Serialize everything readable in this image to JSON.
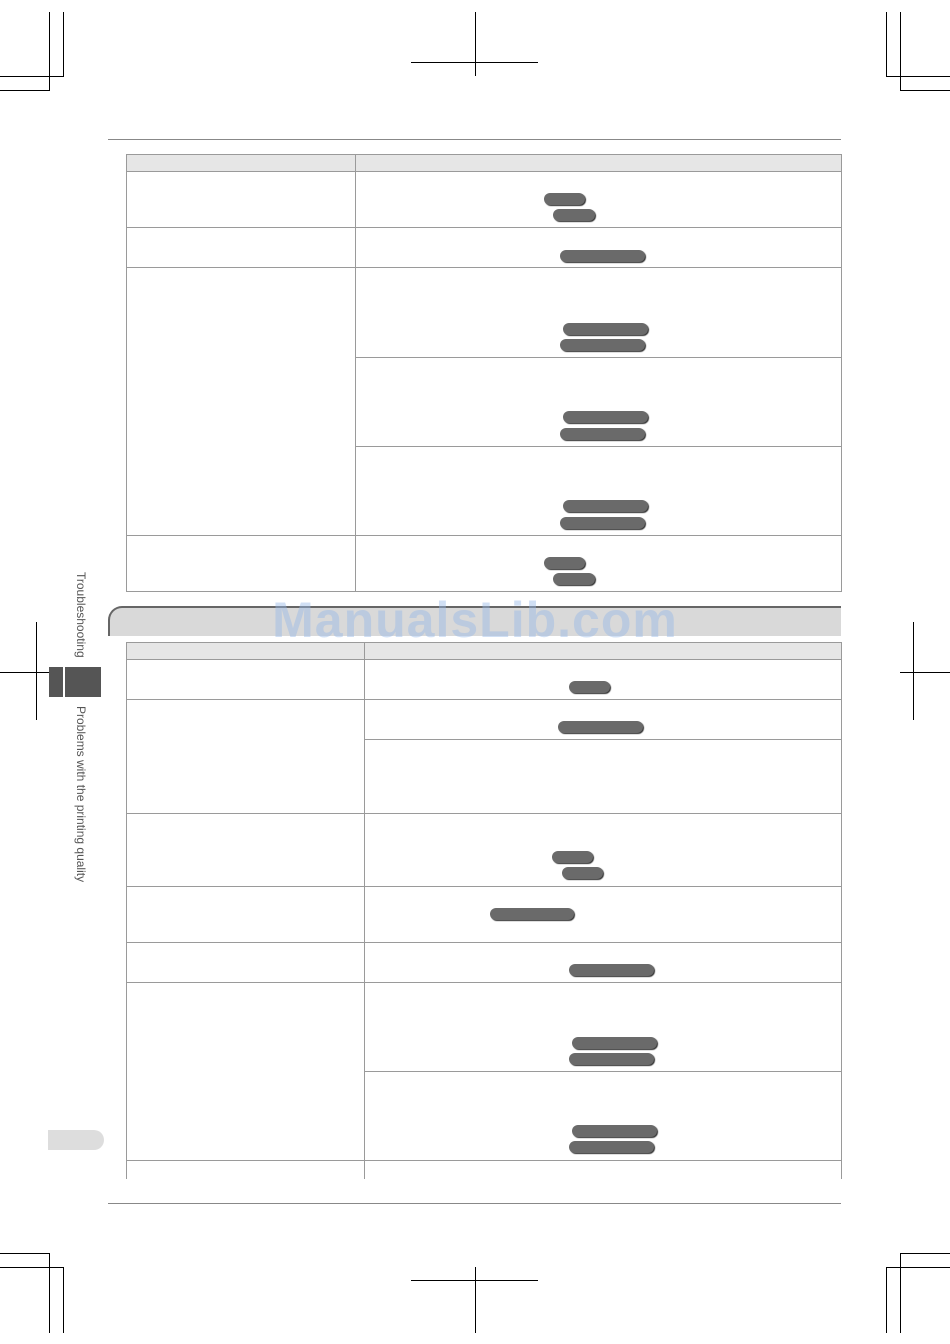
{
  "watermark": "ManualsLib.com",
  "side_nav": {
    "chapter": "Troubleshooting",
    "section": "Problems with the printing quality"
  }
}
